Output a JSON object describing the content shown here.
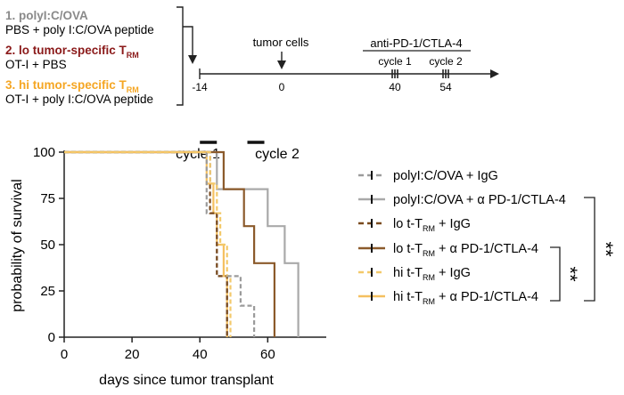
{
  "groups": [
    {
      "title": "1. polyI:C/OVA",
      "title_sub": "",
      "desc": "PBS + poly I:C/OVA peptide",
      "color": "#8a8a8a"
    },
    {
      "title": "2. lo tumor-specific T",
      "title_sub": "RM",
      "desc": "OT-I + PBS",
      "color": "#8b1a1a"
    },
    {
      "title": "3. hi tumor-specific T",
      "title_sub": "RM",
      "desc": "OT-I + poly I:C/OVA peptide",
      "color": "#f5a623"
    }
  ],
  "timeline": {
    "tumor_label": "tumor cells",
    "treatment_label": "anti-PD-1/CTLA-4",
    "cycle1_label": "cycle 1",
    "cycle2_label": "cycle 2",
    "ticks": [
      "-14",
      "0",
      "40",
      "54"
    ]
  },
  "plot_annotations": {
    "cycle1": "cycle 1",
    "cycle2": "cycle 2"
  },
  "significance": {
    "inner": "**",
    "outer": "**"
  },
  "chart_data": {
    "type": "line",
    "title": "",
    "xlabel": "days since tumor transplant",
    "ylabel": "probability of survival",
    "xlim": [
      0,
      72
    ],
    "ylim": [
      0,
      100
    ],
    "xticks": [
      0,
      20,
      40,
      60
    ],
    "yticks": [
      0,
      25,
      50,
      75,
      100
    ],
    "treatment_windows": [
      [
        40,
        45
      ],
      [
        54,
        59
      ]
    ],
    "series": [
      {
        "name": "polyI:C/OVA + IgG",
        "label_main": "polyI:C/OVA + IgG",
        "label_sub": "",
        "label_tail": "",
        "color": "#9b9b9b",
        "dashed": true,
        "steps": [
          [
            0,
            100
          ],
          [
            42,
            100
          ],
          [
            42,
            67
          ],
          [
            45,
            67
          ],
          [
            45,
            33
          ],
          [
            48,
            33
          ],
          [
            48,
            0
          ]
        ]
      },
      {
        "name": "polyI:C/OVA + α PD-1/CTLA-4",
        "label_main": "polyI:C/OVA + α PD-1/CTLA-4",
        "label_sub": "",
        "label_tail": "",
        "color": "#a9a9a9",
        "dashed": false,
        "steps": [
          [
            0,
            100
          ],
          [
            45,
            100
          ],
          [
            45,
            80
          ],
          [
            60,
            80
          ],
          [
            60,
            60
          ],
          [
            65,
            60
          ],
          [
            65,
            40
          ],
          [
            69,
            40
          ],
          [
            69,
            0
          ]
        ]
      },
      {
        "name": "lo t-TRM + IgG",
        "label_main": "lo t-T",
        "label_sub": "RM",
        "label_tail": " + IgG",
        "color": "#7a4a1e",
        "dashed": true,
        "steps": [
          [
            0,
            100
          ],
          [
            43,
            100
          ],
          [
            43,
            67
          ],
          [
            45,
            67
          ],
          [
            45,
            33
          ],
          [
            48,
            33
          ],
          [
            48,
            0
          ]
        ]
      },
      {
        "name": "lo t-TRM + α PD-1/CTLA-4",
        "label_main": "lo t-T",
        "label_sub": "RM",
        "label_tail": " + α PD-1/CTLA-4",
        "color": "#8b5a2b",
        "dashed": false,
        "steps": [
          [
            0,
            100
          ],
          [
            47,
            100
          ],
          [
            47,
            80
          ],
          [
            53,
            80
          ],
          [
            53,
            60
          ],
          [
            56,
            60
          ],
          [
            56,
            40
          ],
          [
            62,
            40
          ],
          [
            62,
            0
          ]
        ]
      },
      {
        "name": "hi t-TRM + IgG",
        "label_main": "hi t-T",
        "label_sub": "RM",
        "label_tail": " + IgG",
        "color": "#f3c96a",
        "dashed": true,
        "steps": [
          [
            0,
            100
          ],
          [
            43,
            100
          ],
          [
            43,
            83
          ],
          [
            45,
            83
          ],
          [
            45,
            67
          ],
          [
            46,
            67
          ],
          [
            46,
            50
          ],
          [
            48,
            50
          ],
          [
            48,
            33
          ],
          [
            49,
            33
          ],
          [
            49,
            0
          ]
        ]
      },
      {
        "name": "hi t-TRM + α PD-1/CTLA-4",
        "label_main": "hi t-T",
        "label_sub": "RM",
        "label_tail": " + α PD-1/CTLA-4",
        "color": "#f5c060",
        "dashed": false,
        "steps": [
          [
            0,
            100
          ],
          [
            42,
            100
          ],
          [
            42,
            83
          ],
          [
            44,
            83
          ],
          [
            44,
            67
          ],
          [
            45,
            67
          ],
          [
            45,
            50
          ],
          [
            47,
            50
          ],
          [
            47,
            33
          ],
          [
            48,
            33
          ],
          [
            48,
            0
          ]
        ]
      }
    ],
    "extra_steps": [
      {
        "color": "#9b9b9b",
        "dashed": true,
        "steps": [
          [
            48,
            33
          ],
          [
            52,
            33
          ],
          [
            52,
            17
          ],
          [
            56,
            17
          ],
          [
            56,
            0
          ]
        ]
      }
    ]
  }
}
